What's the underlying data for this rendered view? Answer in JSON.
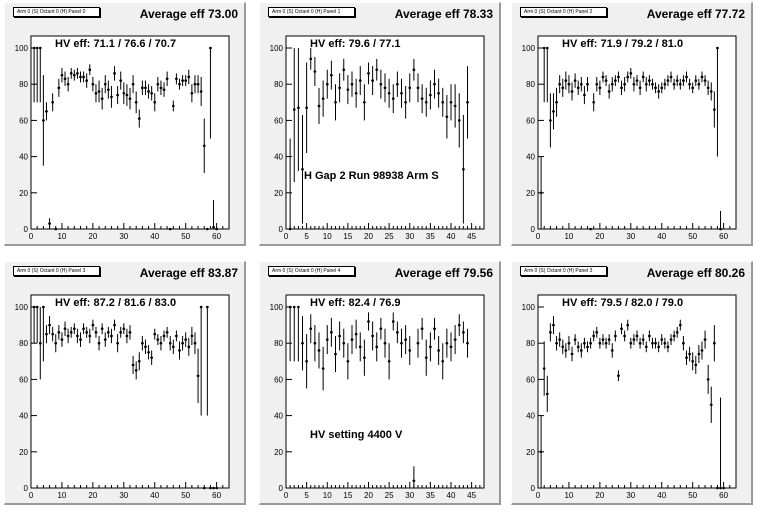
{
  "chart_data": [
    {
      "type": "scatter",
      "panel_label": "Arm 0 (S) Octant 0 (H) Panel 0",
      "avg_label": "Average eff 73.00",
      "hv_label": "HV eff:   71.1 / 76.6 / 70.7",
      "annotation": "",
      "xlim": [
        0,
        64
      ],
      "ylim": [
        0,
        100
      ],
      "xticks": [
        0,
        10,
        20,
        30,
        40,
        50,
        60
      ],
      "yticks": [
        0,
        20,
        40,
        60,
        80,
        100
      ],
      "x": [
        1,
        2,
        3,
        4,
        5,
        6,
        7,
        8,
        9,
        10,
        11,
        12,
        13,
        14,
        15,
        16,
        17,
        18,
        19,
        20,
        21,
        22,
        23,
        24,
        25,
        26,
        27,
        28,
        29,
        30,
        31,
        32,
        33,
        34,
        35,
        36,
        37,
        38,
        39,
        40,
        41,
        42,
        43,
        44,
        45,
        46,
        47,
        48,
        49,
        50,
        51,
        52,
        53,
        54,
        55,
        56,
        57,
        58,
        59,
        60
      ],
      "y": [
        100,
        100,
        100,
        60,
        65,
        3,
        70,
        0,
        78,
        85,
        83,
        80,
        86,
        85,
        86,
        84,
        84,
        82,
        88,
        80,
        75,
        76,
        72,
        80,
        77,
        73,
        86,
        74,
        82,
        75,
        74,
        72,
        80,
        70,
        61,
        78,
        78,
        76,
        75,
        70,
        80,
        78,
        77,
        83,
        0,
        68,
        83,
        80,
        82,
        82,
        84,
        75,
        80,
        80,
        76,
        46,
        0,
        100,
        1,
        0
      ],
      "yerr": [
        30,
        30,
        30,
        25,
        5,
        3,
        5,
        0,
        5,
        4,
        4,
        4,
        3,
        3,
        3,
        3,
        3,
        4,
        3,
        4,
        5,
        6,
        6,
        5,
        5,
        6,
        4,
        5,
        5,
        6,
        6,
        6,
        5,
        6,
        5,
        4,
        4,
        4,
        4,
        5,
        4,
        4,
        4,
        4,
        0,
        3,
        3,
        3,
        3,
        3,
        4,
        5,
        5,
        5,
        8,
        15,
        0,
        50,
        15,
        1
      ]
    },
    {
      "type": "scatter",
      "panel_label": "Arm 0 (S) Octant 0 (H) Panel 1",
      "avg_label": "Average eff 78.33",
      "hv_label": "HV eff:    79.6 / 77.1",
      "annotation": "H Gap 2 Run 98938 Arm S",
      "xlim": [
        0,
        48
      ],
      "ylim": [
        0,
        100
      ],
      "xticks": [
        0,
        5,
        10,
        15,
        20,
        25,
        30,
        35,
        40,
        45
      ],
      "yticks": [
        0,
        20,
        40,
        60,
        80,
        100
      ],
      "x": [
        1,
        2,
        3,
        4,
        5,
        6,
        7,
        8,
        9,
        10,
        11,
        12,
        13,
        14,
        15,
        16,
        17,
        18,
        19,
        20,
        21,
        22,
        23,
        24,
        25,
        26,
        27,
        28,
        29,
        30,
        31,
        32,
        33,
        34,
        35,
        36,
        37,
        38,
        39,
        40,
        41,
        42,
        43,
        44
      ],
      "y": [
        0,
        66,
        67,
        33,
        67,
        94,
        87,
        68,
        72,
        80,
        85,
        70,
        78,
        88,
        77,
        80,
        75,
        82,
        70,
        86,
        82,
        88,
        80,
        78,
        75,
        72,
        80,
        75,
        70,
        78,
        88,
        78,
        72,
        70,
        74,
        80,
        75,
        70,
        62,
        70,
        68,
        60,
        33,
        70
      ],
      "yerr": [
        50,
        40,
        35,
        30,
        25,
        6,
        8,
        10,
        10,
        8,
        8,
        10,
        8,
        6,
        8,
        7,
        8,
        8,
        10,
        6,
        8,
        6,
        8,
        8,
        8,
        8,
        7,
        8,
        9,
        8,
        6,
        8,
        8,
        8,
        8,
        8,
        8,
        8,
        12,
        10,
        12,
        15,
        30,
        20
      ]
    },
    {
      "type": "scatter",
      "panel_label": "Arm 0 (S) Octant 0 (H) Panel 2",
      "avg_label": "Average eff 77.72",
      "hv_label": "HV eff:    71.9 / 79.2 / 81.0",
      "annotation": "",
      "xlim": [
        0,
        64
      ],
      "ylim": [
        0,
        100
      ],
      "xticks": [
        0,
        10,
        20,
        30,
        40,
        50,
        60
      ],
      "yticks": [
        0,
        20,
        40,
        60,
        80,
        100
      ],
      "x": [
        1,
        2,
        3,
        4,
        5,
        6,
        7,
        8,
        9,
        10,
        11,
        12,
        13,
        14,
        15,
        16,
        17,
        18,
        19,
        20,
        21,
        22,
        23,
        24,
        25,
        26,
        27,
        28,
        29,
        30,
        31,
        32,
        33,
        34,
        35,
        36,
        37,
        38,
        39,
        40,
        41,
        42,
        43,
        44,
        45,
        46,
        47,
        48,
        49,
        50,
        51,
        52,
        53,
        54,
        55,
        56,
        57,
        58,
        59
      ],
      "y": [
        20,
        100,
        100,
        60,
        65,
        70,
        80,
        78,
        82,
        80,
        76,
        82,
        78,
        80,
        74,
        80,
        0,
        70,
        80,
        78,
        84,
        82,
        76,
        80,
        82,
        84,
        78,
        80,
        84,
        86,
        80,
        82,
        78,
        84,
        80,
        82,
        80,
        78,
        76,
        78,
        80,
        82,
        84,
        80,
        82,
        80,
        82,
        84,
        80,
        78,
        82,
        80,
        84,
        82,
        78,
        76,
        66,
        100,
        0
      ],
      "yerr": [
        20,
        30,
        30,
        15,
        10,
        8,
        5,
        5,
        5,
        5,
        5,
        4,
        4,
        4,
        5,
        4,
        0,
        5,
        4,
        4,
        3,
        3,
        4,
        4,
        3,
        3,
        4,
        4,
        3,
        3,
        4,
        3,
        4,
        3,
        4,
        3,
        3,
        3,
        4,
        3,
        3,
        3,
        3,
        3,
        3,
        3,
        3,
        3,
        3,
        3,
        3,
        3,
        3,
        3,
        4,
        5,
        10,
        60,
        10
      ]
    },
    {
      "type": "scatter",
      "panel_label": "Arm 0 (S) Octant 0 (H) Panel 3",
      "avg_label": "Average eff 83.87",
      "hv_label": "HV eff:    87.2 / 81.6 / 83.0",
      "annotation": "",
      "xlim": [
        0,
        64
      ],
      "ylim": [
        0,
        100
      ],
      "xticks": [
        0,
        10,
        20,
        30,
        40,
        50,
        60
      ],
      "yticks": [
        0,
        20,
        40,
        60,
        80,
        100
      ],
      "x": [
        1,
        2,
        3,
        4,
        5,
        6,
        7,
        8,
        9,
        10,
        11,
        12,
        13,
        14,
        15,
        16,
        17,
        18,
        19,
        20,
        21,
        22,
        23,
        24,
        25,
        26,
        27,
        28,
        29,
        30,
        31,
        32,
        33,
        34,
        35,
        36,
        37,
        38,
        39,
        40,
        41,
        42,
        43,
        44,
        45,
        46,
        47,
        48,
        49,
        50,
        51,
        52,
        53,
        54,
        55,
        56,
        57,
        58,
        59,
        60
      ],
      "y": [
        100,
        100,
        80,
        100,
        85,
        90,
        85,
        80,
        86,
        82,
        88,
        84,
        86,
        88,
        84,
        82,
        88,
        86,
        84,
        90,
        86,
        80,
        88,
        82,
        86,
        84,
        90,
        80,
        86,
        88,
        84,
        86,
        68,
        65,
        70,
        80,
        78,
        75,
        72,
        85,
        82,
        80,
        84,
        86,
        80,
        78,
        84,
        76,
        80,
        82,
        78,
        84,
        80,
        62,
        100,
        0,
        100,
        0,
        0,
        0
      ],
      "yerr": [
        20,
        20,
        20,
        30,
        5,
        5,
        4,
        5,
        4,
        4,
        4,
        4,
        3,
        3,
        4,
        4,
        3,
        3,
        4,
        3,
        3,
        4,
        3,
        4,
        3,
        4,
        3,
        5,
        3,
        3,
        4,
        4,
        5,
        5,
        5,
        4,
        4,
        4,
        4,
        3,
        3,
        4,
        3,
        3,
        4,
        4,
        3,
        5,
        4,
        4,
        5,
        5,
        6,
        15,
        60,
        0,
        60,
        0,
        0,
        0
      ]
    },
    {
      "type": "scatter",
      "panel_label": "Arm 0 (S) Octant 0 (H) Panel 4",
      "avg_label": "Average eff 79.56",
      "hv_label": "HV eff:    82.4 / 76.9",
      "annotation": "HV setting 4400 V",
      "xlim": [
        0,
        48
      ],
      "ylim": [
        0,
        100
      ],
      "xticks": [
        0,
        5,
        10,
        15,
        20,
        25,
        30,
        35,
        40,
        45
      ],
      "yticks": [
        0,
        20,
        40,
        60,
        80,
        100
      ],
      "x": [
        1,
        2,
        3,
        4,
        5,
        6,
        7,
        8,
        9,
        10,
        11,
        12,
        13,
        14,
        15,
        16,
        17,
        18,
        19,
        20,
        21,
        22,
        23,
        24,
        25,
        26,
        27,
        28,
        29,
        30,
        31,
        32,
        33,
        34,
        35,
        36,
        37,
        38,
        39,
        40,
        41,
        42,
        43,
        44
      ],
      "y": [
        100,
        100,
        100,
        80,
        70,
        88,
        80,
        76,
        66,
        82,
        86,
        74,
        84,
        80,
        70,
        82,
        85,
        78,
        72,
        92,
        84,
        78,
        88,
        80,
        70,
        92,
        86,
        80,
        82,
        76,
        4,
        80,
        88,
        72,
        78,
        88,
        76,
        70,
        80,
        78,
        82,
        90,
        86,
        80
      ],
      "yerr": [
        30,
        30,
        30,
        15,
        15,
        8,
        10,
        10,
        12,
        8,
        8,
        10,
        8,
        8,
        10,
        8,
        8,
        8,
        10,
        5,
        8,
        8,
        6,
        8,
        10,
        5,
        6,
        8,
        8,
        8,
        8,
        8,
        6,
        10,
        8,
        6,
        8,
        10,
        8,
        8,
        8,
        6,
        6,
        8
      ]
    },
    {
      "type": "scatter",
      "panel_label": "Arm 0 (S) Octant 0 (H) Panel 3",
      "avg_label": "Average eff 80.26",
      "hv_label": "HV eff:    79.5 / 82.0 / 79.0",
      "annotation": "",
      "xlim": [
        0,
        64
      ],
      "ylim": [
        0,
        100
      ],
      "xticks": [
        0,
        10,
        20,
        30,
        40,
        50,
        60
      ],
      "yticks": [
        0,
        20,
        40,
        60,
        80,
        100
      ],
      "x": [
        1,
        2,
        3,
        4,
        5,
        6,
        7,
        8,
        9,
        10,
        11,
        12,
        13,
        14,
        15,
        16,
        17,
        18,
        19,
        20,
        21,
        22,
        23,
        24,
        25,
        26,
        27,
        28,
        29,
        30,
        31,
        32,
        33,
        34,
        35,
        36,
        37,
        38,
        39,
        40,
        41,
        42,
        43,
        44,
        45,
        46,
        47,
        48,
        49,
        50,
        51,
        52,
        53,
        54,
        55,
        56,
        57,
        58,
        59,
        60
      ],
      "y": [
        20,
        66,
        52,
        86,
        90,
        80,
        82,
        78,
        76,
        80,
        74,
        82,
        78,
        76,
        80,
        78,
        80,
        84,
        86,
        80,
        82,
        80,
        82,
        76,
        84,
        62,
        88,
        84,
        90,
        80,
        82,
        84,
        80,
        82,
        78,
        84,
        80,
        80,
        78,
        82,
        80,
        78,
        82,
        84,
        86,
        90,
        80,
        72,
        74,
        70,
        68,
        74,
        76,
        82,
        60,
        46,
        80,
        0,
        0,
        0
      ],
      "yerr": [
        20,
        15,
        10,
        5,
        5,
        4,
        4,
        4,
        4,
        4,
        4,
        3,
        3,
        4,
        3,
        3,
        3,
        3,
        3,
        3,
        3,
        3,
        3,
        4,
        3,
        3,
        3,
        3,
        3,
        3,
        3,
        3,
        3,
        3,
        3,
        3,
        3,
        3,
        3,
        3,
        3,
        3,
        3,
        3,
        3,
        3,
        4,
        4,
        4,
        5,
        5,
        5,
        5,
        5,
        8,
        10,
        10,
        0,
        50,
        0
      ]
    }
  ]
}
